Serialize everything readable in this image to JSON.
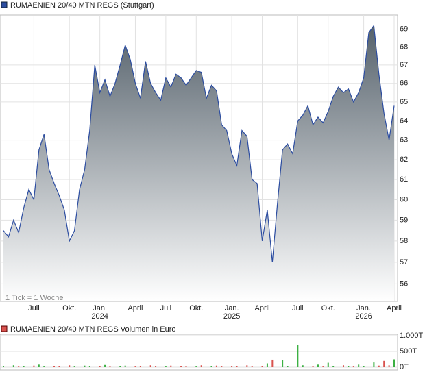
{
  "chart_data": [
    {
      "type": "area-line",
      "title": "RUMAENIEN 20/40 MTN REGS (Stuttgart)",
      "annotation": "1 Tick = 1 Woche",
      "categories": [
        null,
        null,
        null,
        null,
        null,
        null,
        "Juli",
        null,
        null,
        null,
        null,
        null,
        null,
        "Okt.",
        null,
        null,
        null,
        null,
        null,
        "Jan. 2024",
        null,
        null,
        null,
        null,
        null,
        null,
        "April",
        null,
        null,
        null,
        null,
        null,
        "Juli",
        null,
        null,
        null,
        null,
        null,
        "Okt.",
        null,
        null,
        null,
        null,
        null,
        null,
        "Jan. 2025",
        null,
        null,
        null,
        null,
        null,
        "April",
        null,
        null,
        null,
        null,
        null,
        null,
        "Juli",
        null,
        null,
        null,
        null,
        null,
        "Okt.",
        null,
        null,
        null,
        null,
        null,
        null,
        "Jan. 2026",
        null,
        null,
        null,
        null,
        null,
        "April"
      ],
      "values": [
        58.5,
        58.2,
        59,
        58.4,
        59.6,
        60.5,
        60,
        62.5,
        63.3,
        61.5,
        60.8,
        60.2,
        59.5,
        58,
        58.5,
        60.5,
        61.5,
        63.5,
        67,
        65.5,
        66.2,
        65.3,
        66,
        67,
        68.1,
        67.3,
        66,
        65.2,
        67.2,
        66,
        65.5,
        65.1,
        66.3,
        65.8,
        66.5,
        66.3,
        65.9,
        66.3,
        66.7,
        66.6,
        65.2,
        65.9,
        65.6,
        63.8,
        63.5,
        62.3,
        61.7,
        63.5,
        63.2,
        61,
        60.8,
        58,
        59.5,
        57,
        59.8,
        62.5,
        62.8,
        62.3,
        64,
        64.3,
        64.8,
        63.8,
        64.2,
        63.9,
        64.5,
        65.3,
        65.8,
        65.5,
        65.7,
        65,
        65.5,
        66.3,
        68.8,
        69.2,
        66.5,
        64.4,
        63,
        64.8
      ],
      "color": "#2b4ca0",
      "ylim": [
        55.2,
        69.8
      ],
      "yticks": [
        56,
        57,
        58,
        59,
        60,
        61,
        62,
        63,
        64,
        65,
        66,
        67,
        68,
        69
      ],
      "log_scale": true,
      "grid": true
    },
    {
      "type": "volume-bar",
      "title": "RUMAENIEN 20/40 MTN REGS Volumen in Euro",
      "values": [
        40,
        0,
        60,
        20,
        30,
        0,
        50,
        80,
        20,
        0,
        40,
        30,
        0,
        60,
        20,
        0,
        50,
        30,
        0,
        40,
        70,
        20,
        0,
        30,
        50,
        0,
        20,
        40,
        0,
        60,
        30,
        0,
        20,
        50,
        0,
        30,
        40,
        0,
        20,
        60,
        0,
        30,
        50,
        20,
        0,
        40,
        30,
        0,
        60,
        20,
        0,
        40,
        120,
        240,
        0,
        220,
        30,
        0,
        700,
        60,
        0,
        40,
        80,
        20,
        140,
        30,
        0,
        60,
        40,
        20,
        80,
        30,
        0,
        150,
        50,
        200,
        60,
        250
      ],
      "up_color": "#3cb043",
      "down_color": "#d9534f",
      "ylim": [
        0,
        1000
      ],
      "yticks": [
        {
          "value": 1000,
          "label": "1.000T"
        },
        {
          "value": 500,
          "label": "500T"
        },
        {
          "value": 0,
          "label": "0T"
        }
      ]
    }
  ]
}
